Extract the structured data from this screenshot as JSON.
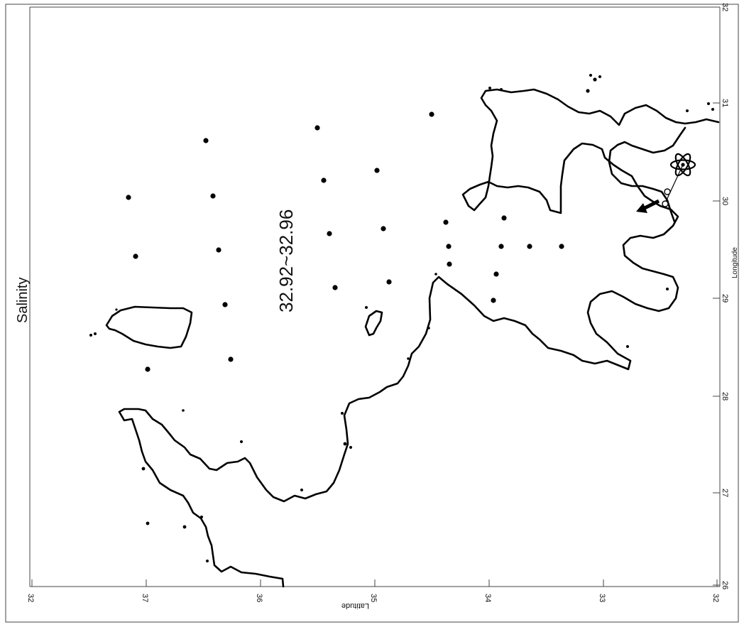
{
  "title": "Salinity",
  "annotation": "32.92~32.96",
  "x_axis": {
    "label": "Latitude",
    "ticks": [
      "32",
      "37",
      "36",
      "35",
      "34",
      "33",
      "32"
    ]
  },
  "y_axis": {
    "label": "Longitude",
    "ticks": [
      "26",
      "27",
      "28",
      "29",
      "30",
      "31",
      "32"
    ]
  },
  "stations_count": 36,
  "symbols": {
    "plant": "nuclear-atom-icon",
    "discharge": "arrow-icon",
    "station": "dot"
  },
  "colors": {
    "coast": "#000000",
    "background": "#ffffff"
  }
}
